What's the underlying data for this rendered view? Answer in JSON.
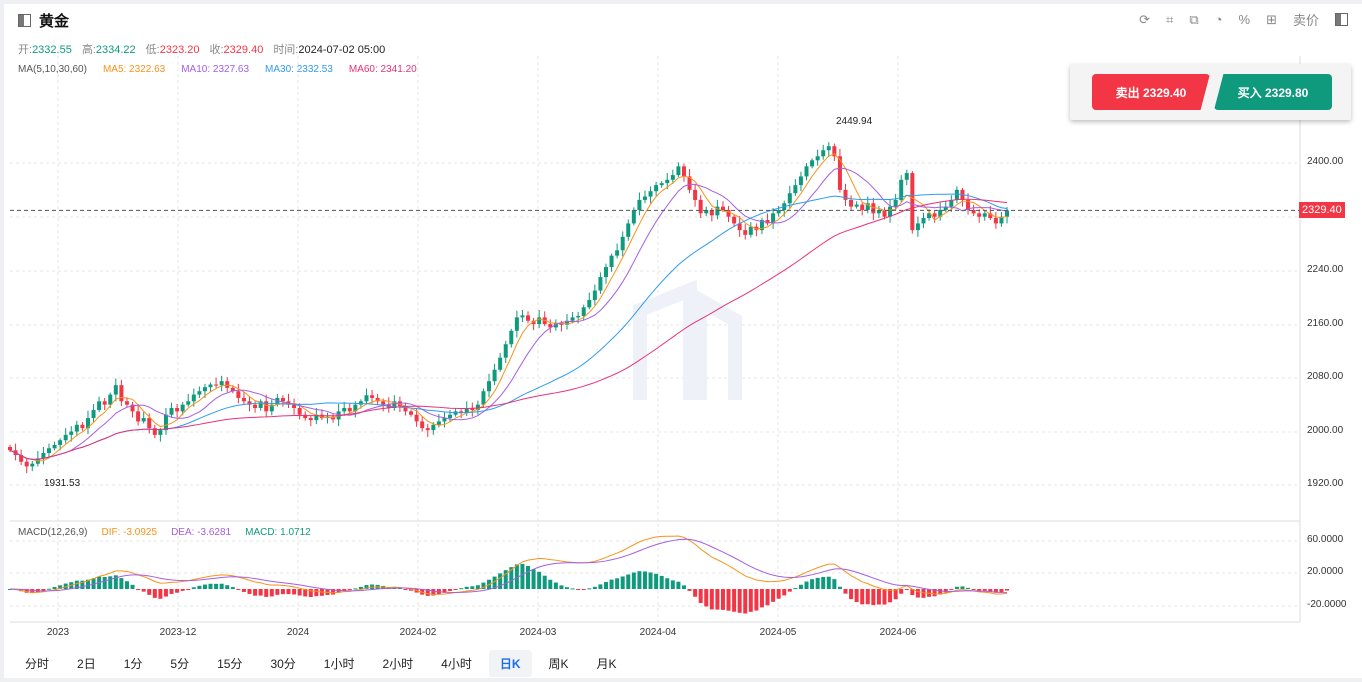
{
  "header": {
    "title": "黄金",
    "open_label": "开:",
    "open": "2332.55",
    "high_label": "高:",
    "high": "2334.22",
    "low_label": "低:",
    "low": "2323.20",
    "close_label": "收:",
    "close": "2329.40",
    "time_label": "时间:",
    "time": "2024-07-02 05:00"
  },
  "ma": {
    "label": "MA(5,10,30,60)",
    "ma5": "MA5: 2322.63",
    "ma10": "MA10: 2327.63",
    "ma30": "MA30: 2332.53",
    "ma60": "MA60: 2341.20"
  },
  "macd": {
    "label": "MACD(12,26,9)",
    "dif": "DIF: -3.0925",
    "dea": "DEA: -3.6281",
    "macd": "MACD: 1.0712"
  },
  "toolbar": {
    "icons": [
      "refresh-icon",
      "draw-icon",
      "indicator-icon",
      "pie-icon",
      "percent-icon",
      "grid-icon"
    ],
    "price_mode": "卖价"
  },
  "trade": {
    "sell": "卖出 2329.40",
    "buy": "买入 2329.80"
  },
  "price_tag": "2329.40",
  "annotations": {
    "max": "2449.94",
    "min": "1931.53"
  },
  "tabs": [
    "分时",
    "2日",
    "1分",
    "5分",
    "15分",
    "30分",
    "1小时",
    "2小时",
    "4小时",
    "日K",
    "周K",
    "月K"
  ],
  "active_tab": "日K",
  "colors": {
    "up": "#0f9a7e",
    "down": "#f23645",
    "ma5": "#f7931a",
    "ma10": "#a45ee5",
    "ma30": "#2d9cf0",
    "ma60": "#e8317a"
  },
  "chart_data": {
    "type": "candlestick",
    "y_ticks": [
      "2400.00",
      "2240.00",
      "2160.00",
      "2080.00",
      "2000.00",
      "1920.00"
    ],
    "macd_ticks": [
      "60.0000",
      "20.0000",
      "-20.0000"
    ],
    "x_ticks": [
      "2023",
      "2023-12",
      "2024",
      "2024-02",
      "2024-03",
      "2024-04",
      "2024-05",
      "2024-06"
    ],
    "closes": [
      1972,
      1965,
      1955,
      1948,
      1952,
      1960,
      1968,
      1975,
      1980,
      1987,
      1995,
      2000,
      2010,
      2005,
      2020,
      2032,
      2045,
      2040,
      2055,
      2069,
      2045,
      2040,
      2030,
      2015,
      2020,
      2005,
      1995,
      2002,
      2025,
      2035,
      2030,
      2040,
      2045,
      2055,
      2060,
      2066,
      2070,
      2069,
      2075,
      2065,
      2060,
      2050,
      2045,
      2040,
      2035,
      2045,
      2030,
      2040,
      2050,
      2045,
      2040,
      2035,
      2025,
      2020,
      2017,
      2025,
      2020,
      2022,
      2018,
      2030,
      2035,
      2030,
      2040,
      2045,
      2054,
      2050,
      2045,
      2040,
      2035,
      2045,
      2038,
      2030,
      2025,
      2015,
      2005,
      2002,
      2010,
      2015,
      2020,
      2025,
      2030,
      2028,
      2035,
      2032,
      2040,
      2060,
      2075,
      2092,
      2110,
      2130,
      2150,
      2170,
      2173,
      2165,
      2160,
      2170,
      2160,
      2155,
      2162,
      2159,
      2165,
      2170,
      2172,
      2185,
      2196,
      2210,
      2230,
      2245,
      2262,
      2270,
      2290,
      2310,
      2330,
      2345,
      2350,
      2358,
      2367,
      2370,
      2375,
      2382,
      2395,
      2380,
      2360,
      2345,
      2325,
      2330,
      2322,
      2335,
      2330,
      2320,
      2310,
      2300,
      2293,
      2305,
      2300,
      2315,
      2310,
      2325,
      2330,
      2340,
      2355,
      2367,
      2380,
      2395,
      2404,
      2410,
      2419,
      2425,
      2410,
      2360,
      2345,
      2335,
      2338,
      2330,
      2340,
      2325,
      2330,
      2320,
      2335,
      2345,
      2375,
      2385,
      2300,
      2310,
      2318,
      2325,
      2320,
      2330,
      2335,
      2345,
      2360,
      2345,
      2330,
      2325,
      2320,
      2325,
      2318,
      2310,
      2320,
      2329.4
    ]
  }
}
